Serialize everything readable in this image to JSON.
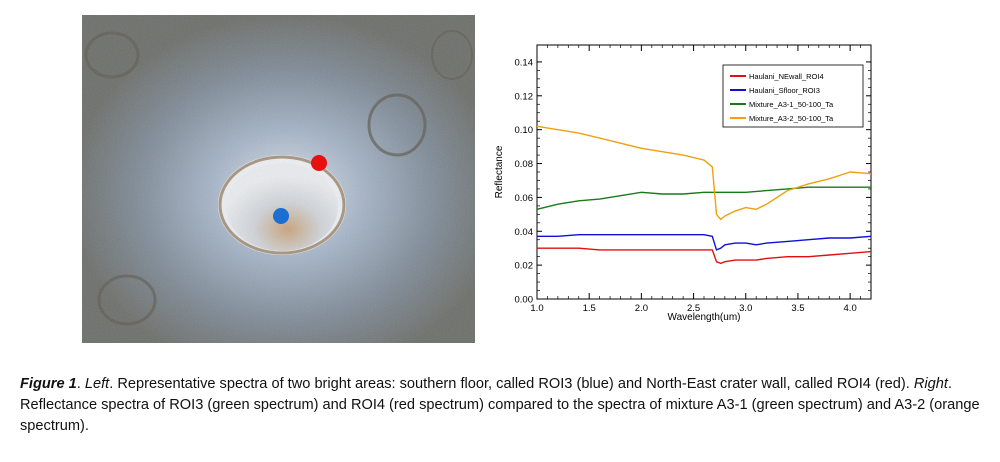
{
  "figure": {
    "caption_label": "Figure 1",
    "caption_sep1": ". ",
    "caption_left": "Left",
    "caption_part1": ". Representative spectra of two bright areas: southern floor, called ROI3 (blue) and North-East crater wall, called ROI4 (red). ",
    "caption_right": "Right",
    "caption_part2": ". Reflectance spectra of ROI3 (green spectrum) and ROI4 (red spectrum) compared to the spectra of mixture A3-1 (green spectrum) and A3-2 (orange spectrum)."
  },
  "image": {
    "roi_markers": [
      {
        "name": "roi4-marker",
        "color": "#e81010"
      },
      {
        "name": "roi3-marker",
        "color": "#1a6fd0"
      }
    ]
  },
  "chart_data": {
    "type": "line",
    "xlabel": "Wavelength(um)",
    "ylabel": "Reflectance",
    "xlim": [
      1.0,
      4.2
    ],
    "ylim": [
      0.0,
      0.15
    ],
    "xticks": [
      "1.0",
      "1.5",
      "2.0",
      "2.5",
      "3.0",
      "3.5",
      "4.0"
    ],
    "xtick_values": [
      1.0,
      1.5,
      2.0,
      2.5,
      3.0,
      3.5,
      4.0
    ],
    "yticks": [
      "0.00",
      "0.02",
      "0.04",
      "0.06",
      "0.08",
      "0.10",
      "0.12",
      "0.14"
    ],
    "ytick_values": [
      0.0,
      0.02,
      0.04,
      0.06,
      0.08,
      0.1,
      0.12,
      0.14
    ],
    "legend_position": "top-right",
    "series": [
      {
        "name": "Haulani_NEwall_ROI4",
        "color": "#e01010",
        "x": [
          1.0,
          1.2,
          1.4,
          1.6,
          1.8,
          2.0,
          2.2,
          2.4,
          2.6,
          2.68,
          2.72,
          2.76,
          2.8,
          2.9,
          3.0,
          3.1,
          3.2,
          3.4,
          3.6,
          3.8,
          4.0,
          4.2
        ],
        "y": [
          0.03,
          0.03,
          0.03,
          0.029,
          0.029,
          0.029,
          0.029,
          0.029,
          0.029,
          0.029,
          0.022,
          0.021,
          0.022,
          0.023,
          0.023,
          0.023,
          0.024,
          0.025,
          0.025,
          0.026,
          0.027,
          0.028
        ]
      },
      {
        "name": "Haulani_Sfloor_ROI3",
        "color": "#1010d8",
        "x": [
          1.0,
          1.2,
          1.4,
          1.6,
          1.8,
          2.0,
          2.2,
          2.4,
          2.6,
          2.68,
          2.72,
          2.76,
          2.8,
          2.9,
          3.0,
          3.1,
          3.2,
          3.4,
          3.6,
          3.8,
          4.0,
          4.2
        ],
        "y": [
          0.037,
          0.037,
          0.038,
          0.038,
          0.038,
          0.038,
          0.038,
          0.038,
          0.038,
          0.037,
          0.029,
          0.03,
          0.032,
          0.033,
          0.033,
          0.032,
          0.033,
          0.034,
          0.035,
          0.036,
          0.036,
          0.037
        ]
      },
      {
        "name": "Mixture_A3-1_50-100_Ta",
        "color": "#1a7a1a",
        "x": [
          1.0,
          1.2,
          1.4,
          1.6,
          1.8,
          2.0,
          2.2,
          2.4,
          2.6,
          2.7,
          2.8,
          3.0,
          3.2,
          3.4,
          3.6,
          3.8,
          4.0,
          4.2
        ],
        "y": [
          0.053,
          0.056,
          0.058,
          0.059,
          0.061,
          0.063,
          0.062,
          0.062,
          0.063,
          0.063,
          0.063,
          0.063,
          0.064,
          0.065,
          0.066,
          0.066,
          0.066,
          0.066
        ]
      },
      {
        "name": "Mixture_A3-2_50-100_Ta",
        "color": "#f0a010",
        "x": [
          1.0,
          1.2,
          1.4,
          1.6,
          1.8,
          2.0,
          2.2,
          2.4,
          2.6,
          2.68,
          2.72,
          2.76,
          2.8,
          2.9,
          3.0,
          3.1,
          3.2,
          3.3,
          3.4,
          3.6,
          3.8,
          4.0,
          4.2
        ],
        "y": [
          0.102,
          0.1,
          0.098,
          0.095,
          0.092,
          0.089,
          0.087,
          0.085,
          0.082,
          0.078,
          0.05,
          0.047,
          0.049,
          0.052,
          0.054,
          0.053,
          0.056,
          0.06,
          0.064,
          0.068,
          0.071,
          0.075,
          0.074
        ]
      }
    ]
  }
}
